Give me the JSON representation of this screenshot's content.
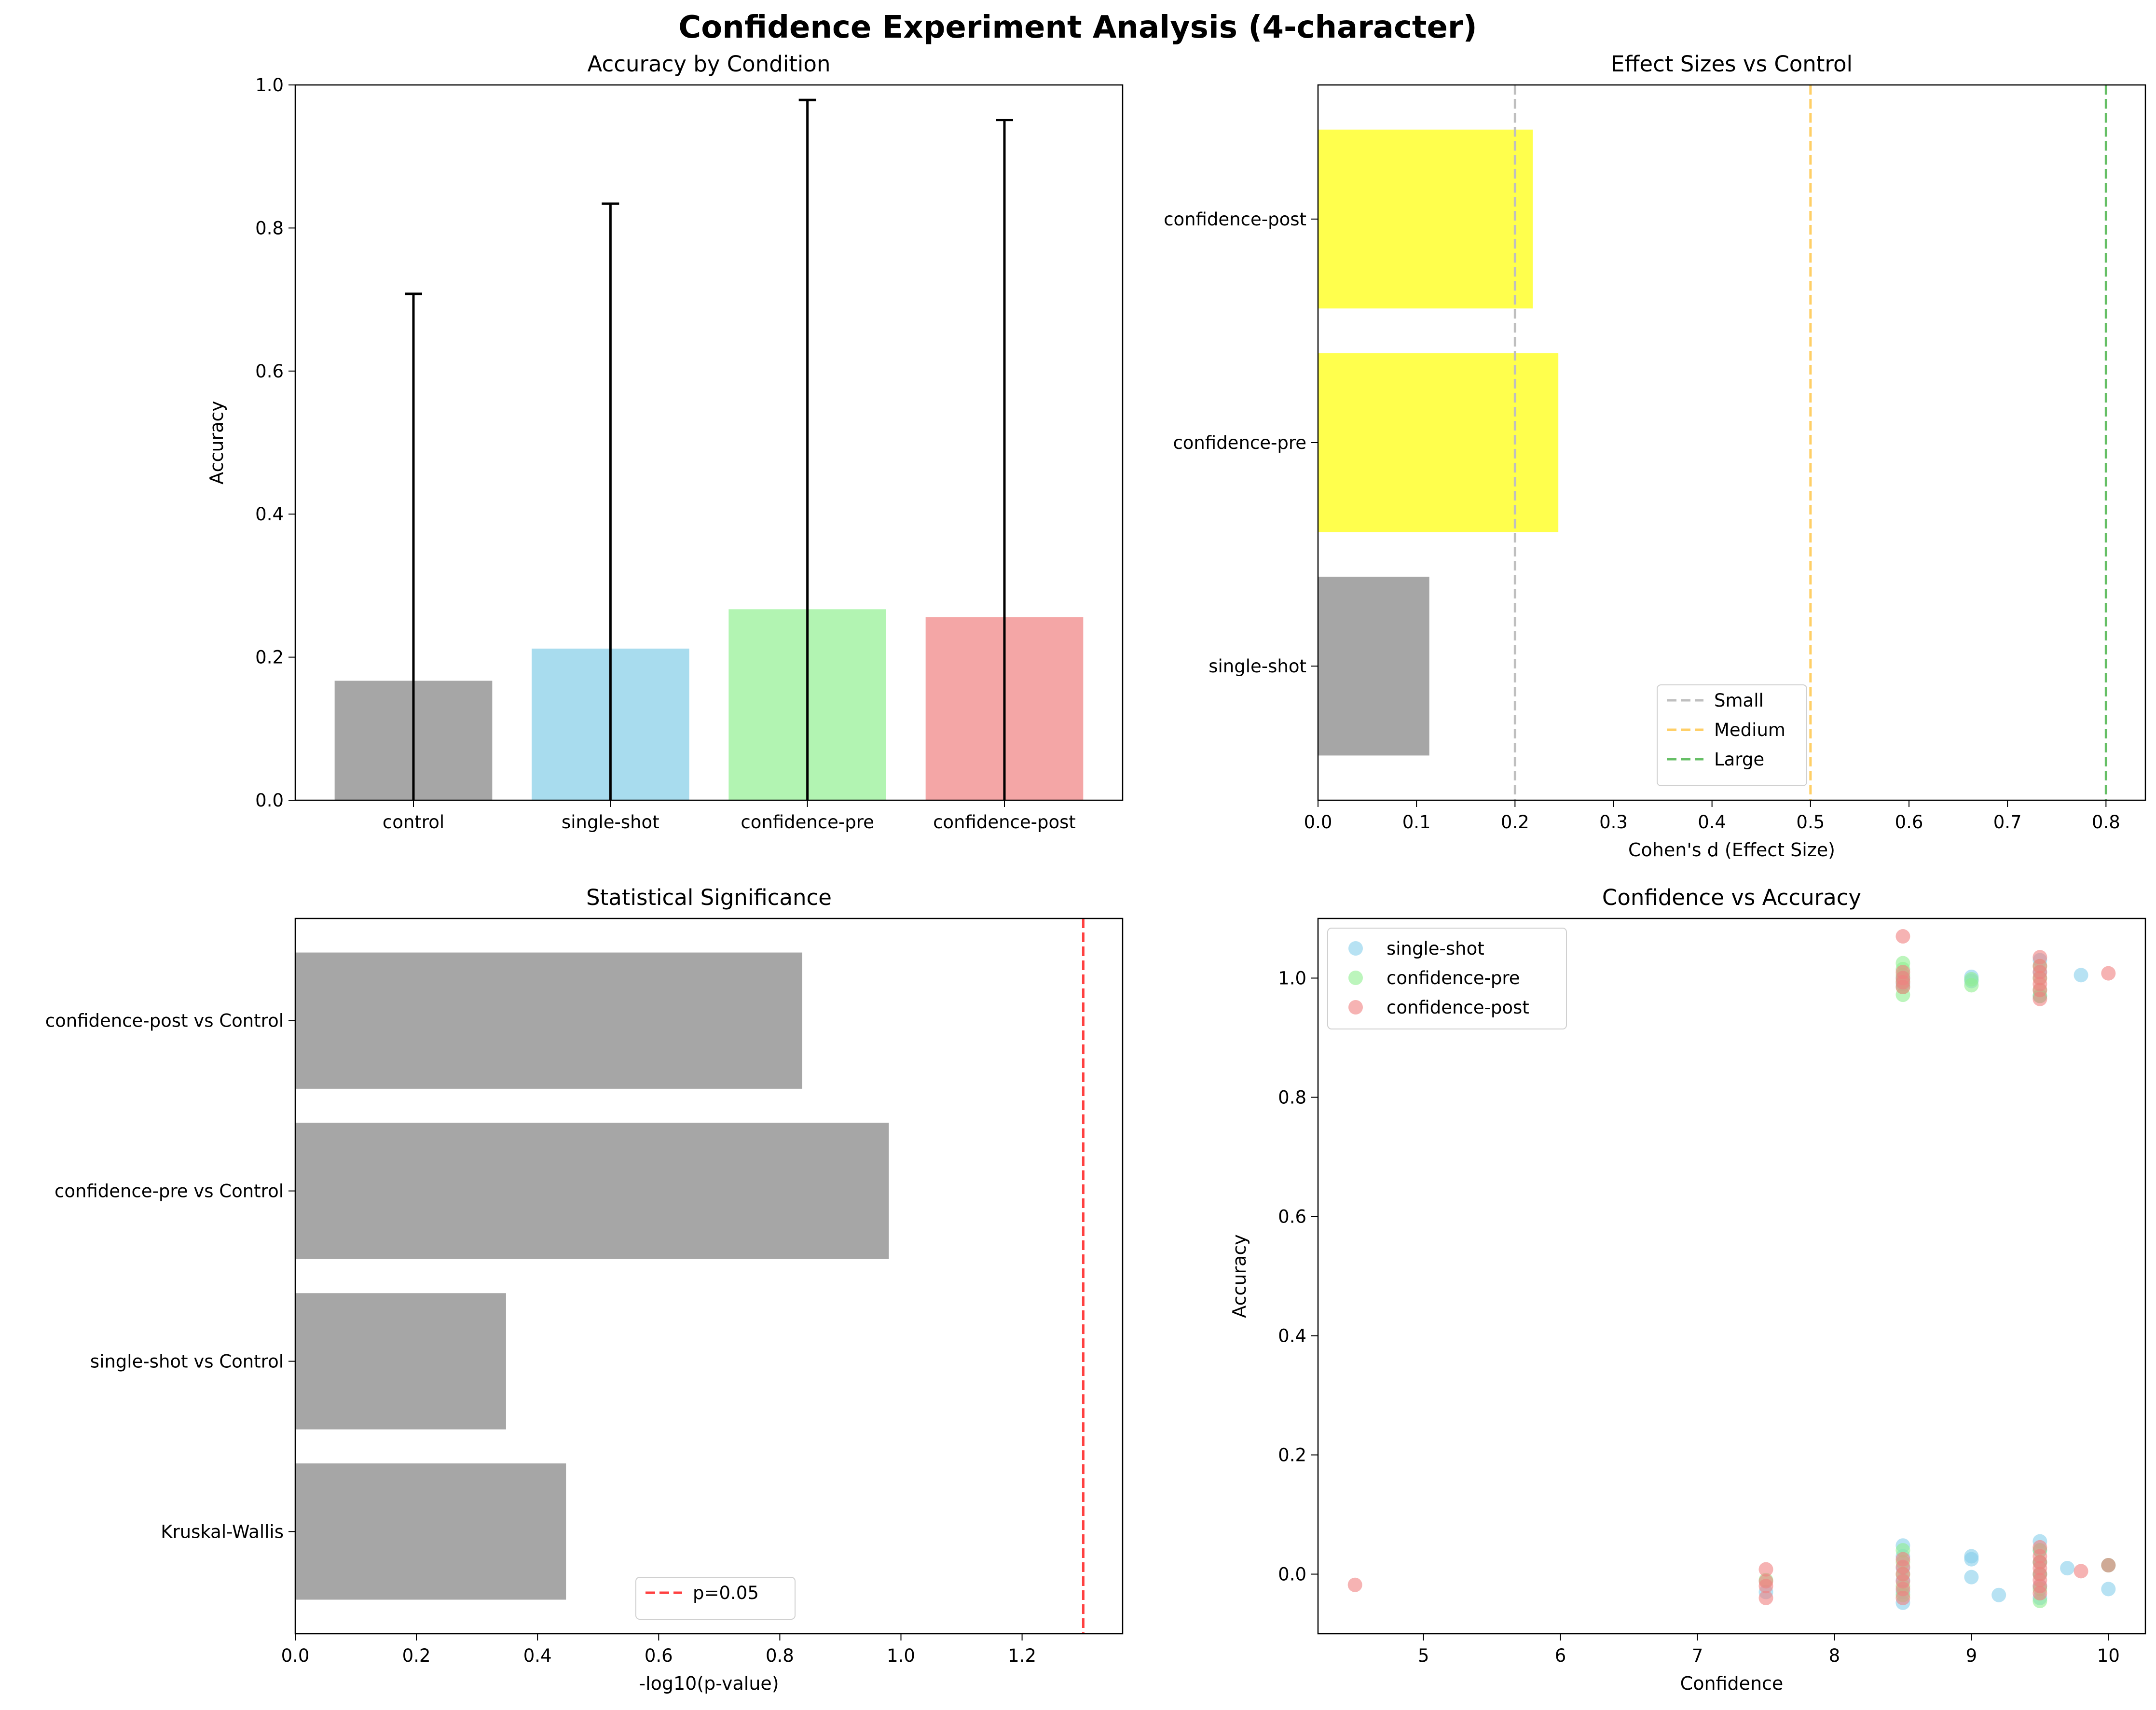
{
  "suptitle": "Confidence Experiment Analysis (4-character)",
  "chart_data": [
    {
      "type": "bar",
      "title": "Accuracy by Condition",
      "xlabel": "",
      "ylabel": "Accuracy",
      "ylim": [
        0,
        1.0
      ],
      "yticks": [
        "0.0",
        "0.2",
        "0.4",
        "0.6",
        "0.8",
        "1.0"
      ],
      "categories": [
        "control",
        "single-shot",
        "confidence-pre",
        "confidence-post"
      ],
      "values": [
        0.167,
        0.212,
        0.267,
        0.256
      ],
      "error_upper": [
        0.541,
        0.622,
        0.712,
        0.695
      ],
      "error_lower": [
        0,
        0,
        0,
        0
      ],
      "colors": [
        "#a6a6a6",
        "#a8dcee",
        "#b2f4b2",
        "#f4a6a6"
      ],
      "grid": false
    },
    {
      "type": "bar",
      "orientation": "horizontal",
      "title": "Effect Sizes vs Control",
      "xlabel": "Cohen's d (Effect Size)",
      "ylabel": "",
      "xlim": [
        0,
        0.84
      ],
      "xticks": [
        "0.0",
        "0.1",
        "0.2",
        "0.3",
        "0.4",
        "0.5",
        "0.6",
        "0.7",
        "0.8"
      ],
      "categories": [
        "single-shot",
        "confidence-pre",
        "confidence-post"
      ],
      "values": [
        0.113,
        0.244,
        0.218
      ],
      "colors": [
        "#a6a6a6",
        "#ffff4d",
        "#ffff4d"
      ],
      "reference_lines": [
        {
          "name": "Small",
          "x": 0.2,
          "color": "#bfbfbf"
        },
        {
          "name": "Medium",
          "x": 0.5,
          "color": "#ffcf66"
        },
        {
          "name": "Large",
          "x": 0.8,
          "color": "#66bf66"
        }
      ],
      "legend": "bottom-center",
      "grid": false
    },
    {
      "type": "bar",
      "orientation": "horizontal",
      "title": "Statistical Significance",
      "xlabel": "-log10(p-value)",
      "ylabel": "",
      "xlim": [
        0,
        1.366
      ],
      "xticks": [
        "0.0",
        "0.2",
        "0.4",
        "0.6",
        "0.8",
        "1.0",
        "1.2"
      ],
      "categories": [
        "Kruskal-Wallis",
        "single-shot vs Control",
        "confidence-pre vs Control",
        "confidence-post vs Control"
      ],
      "values": [
        0.447,
        0.348,
        0.98,
        0.837
      ],
      "colors": [
        "#a6a6a6",
        "#a6a6a6",
        "#a6a6a6",
        "#a6a6a6"
      ],
      "reference_lines": [
        {
          "name": "p=0.05",
          "x": 1.301,
          "color": "#ff4040"
        }
      ],
      "legend": "bottom-center",
      "grid": false
    },
    {
      "type": "scatter",
      "title": "Confidence vs Accuracy",
      "xlabel": "Confidence",
      "ylabel": "Accuracy",
      "xlim": [
        4.23,
        10.27
      ],
      "ylim": [
        -0.1,
        1.1
      ],
      "xticks": [
        "5",
        "6",
        "7",
        "8",
        "9",
        "10"
      ],
      "yticks": [
        "0.0",
        "0.2",
        "0.4",
        "0.6",
        "0.8",
        "1.0"
      ],
      "legend": "top-left",
      "grid": false,
      "series": [
        {
          "name": "single-shot",
          "color": "#87ceeb",
          "points": [
            [
              8.5,
              0.048
            ],
            [
              8.5,
              0.03
            ],
            [
              8.5,
              0.01
            ],
            [
              8.5,
              -0.01
            ],
            [
              8.5,
              -0.03
            ],
            [
              8.5,
              -0.048
            ],
            [
              8.5,
              1.0
            ],
            [
              8.5,
              0.99
            ],
            [
              9.0,
              0.03
            ],
            [
              9.0,
              0.025
            ],
            [
              9.0,
              -0.005
            ],
            [
              9.0,
              1.002
            ],
            [
              9.0,
              0.995
            ],
            [
              9.2,
              -0.035
            ],
            [
              9.5,
              0.055
            ],
            [
              9.5,
              0.04
            ],
            [
              9.5,
              0.02
            ],
            [
              9.5,
              0.0
            ],
            [
              9.5,
              -0.02
            ],
            [
              9.5,
              -0.04
            ],
            [
              9.5,
              0.97
            ],
            [
              9.5,
              1.01
            ],
            [
              9.5,
              1.03
            ],
            [
              9.7,
              0.01
            ],
            [
              9.8,
              1.005
            ],
            [
              10.0,
              -0.025
            ],
            [
              10.0,
              0.015
            ],
            [
              7.5,
              -0.03
            ]
          ]
        },
        {
          "name": "confidence-pre",
          "color": "#90ee90",
          "points": [
            [
              8.5,
              1.025
            ],
            [
              8.5,
              1.015
            ],
            [
              8.5,
              1.005
            ],
            [
              8.5,
              0.995
            ],
            [
              8.5,
              0.985
            ],
            [
              8.5,
              0.972
            ],
            [
              8.5,
              0.04
            ],
            [
              8.5,
              0.02
            ],
            [
              8.5,
              0.0
            ],
            [
              8.5,
              -0.02
            ],
            [
              8.5,
              -0.035
            ],
            [
              9.0,
              0.988
            ],
            [
              9.0,
              0.998
            ],
            [
              9.5,
              1.02
            ],
            [
              9.5,
              1.0
            ],
            [
              9.5,
              0.98
            ],
            [
              9.5,
              0.97
            ],
            [
              9.5,
              -0.045
            ],
            [
              9.5,
              -0.025
            ],
            [
              9.5,
              0.0
            ],
            [
              9.5,
              0.02
            ],
            [
              9.5,
              0.04
            ],
            [
              7.5,
              -0.01
            ],
            [
              10.0,
              0.015
            ]
          ]
        },
        {
          "name": "confidence-post",
          "color": "#f08080",
          "points": [
            [
              4.5,
              -0.018
            ],
            [
              7.5,
              0.008
            ],
            [
              7.5,
              -0.012
            ],
            [
              7.5,
              -0.02
            ],
            [
              7.5,
              -0.04
            ],
            [
              8.5,
              1.07
            ],
            [
              8.5,
              1.01
            ],
            [
              8.5,
              1.0
            ],
            [
              8.5,
              0.993
            ],
            [
              8.5,
              0.985
            ],
            [
              8.5,
              0.025
            ],
            [
              8.5,
              0.012
            ],
            [
              8.5,
              0.0
            ],
            [
              8.5,
              -0.012
            ],
            [
              8.5,
              -0.025
            ],
            [
              8.5,
              -0.04
            ],
            [
              9.5,
              1.035
            ],
            [
              9.5,
              1.02
            ],
            [
              9.5,
              1.01
            ],
            [
              9.5,
              1.0
            ],
            [
              9.5,
              0.99
            ],
            [
              9.5,
              0.98
            ],
            [
              9.5,
              0.965
            ],
            [
              9.5,
              0.045
            ],
            [
              9.5,
              0.03
            ],
            [
              9.5,
              0.02
            ],
            [
              9.5,
              0.01
            ],
            [
              9.5,
              0.0
            ],
            [
              9.5,
              -0.01
            ],
            [
              9.5,
              -0.02
            ],
            [
              9.5,
              -0.032
            ],
            [
              9.8,
              0.005
            ],
            [
              10.0,
              1.008
            ],
            [
              10.0,
              0.015
            ]
          ]
        }
      ]
    }
  ]
}
